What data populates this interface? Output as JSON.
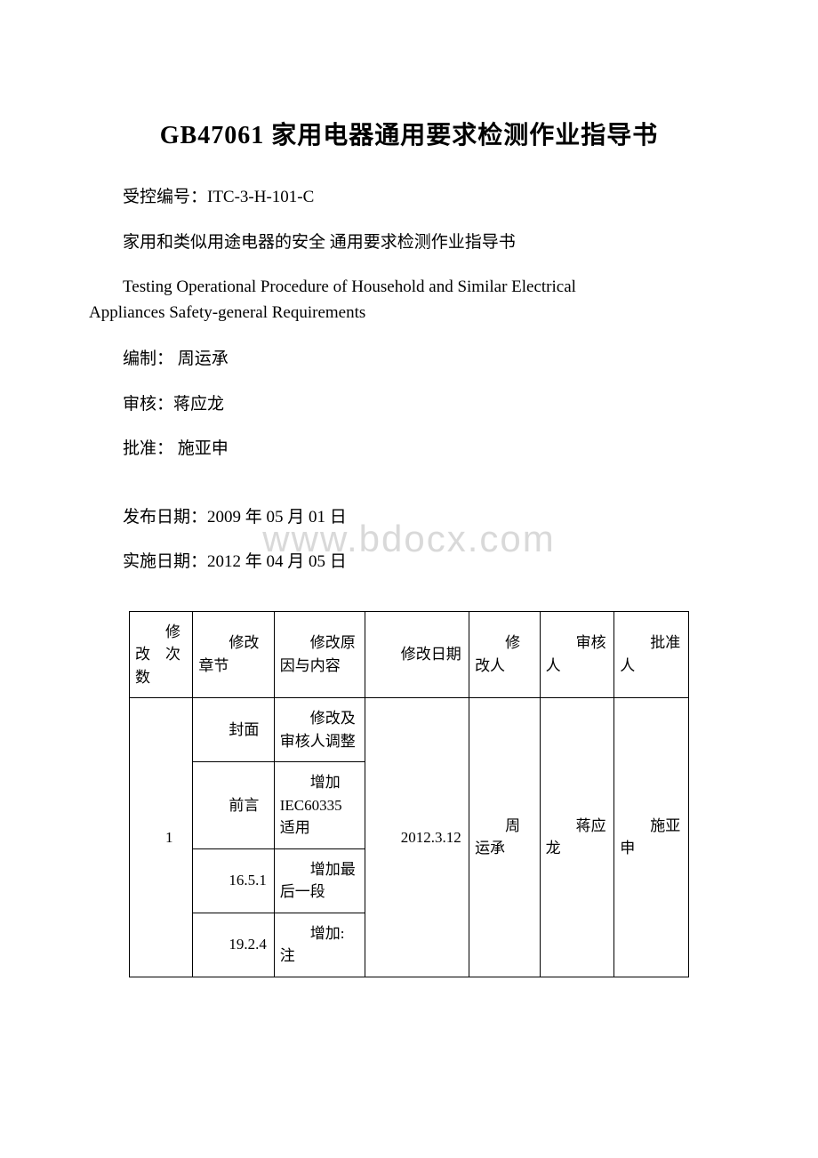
{
  "title": "GB47061 家用电器通用要求检测作业指导书",
  "control_number": "受控编号：ITC-3-H-101-C",
  "subtitle_cn": "家用和类似用途电器的安全 通用要求检测作业指导书",
  "subtitle_en_line1": "Testing Operational Procedure of Household and Similar Electrical",
  "subtitle_en_line2": "Appliances Safety-general Requirements",
  "author": "编制： 周运承",
  "reviewer": "审核：蒋应龙",
  "approver": "批准： 施亚申",
  "publish_date": "发布日期：2009 年 05 月 01 日",
  "effective_date": "实施日期：2012 年 04 月 05 日",
  "watermark": "www.bdocx.com",
  "table": {
    "headers": {
      "c1": "修改　次数",
      "c2": "修改章节",
      "c3": "修改原因与内容",
      "c4": "修改日期",
      "c5": "修改人",
      "c6": "审核人",
      "c7": "批准人"
    },
    "revision_number": "1",
    "sections": [
      {
        "chapter": "封面",
        "content": "修改及审核人调整"
      },
      {
        "chapter": "前言",
        "content": "增加IEC60335 适用"
      },
      {
        "chapter": "16.5.1",
        "content": "增加最后一段"
      },
      {
        "chapter": "19.2.4",
        "content": "增加:注"
      }
    ],
    "date": "2012.3.12",
    "modifier": "周运承",
    "reviewer": "蒋应龙",
    "approver": "施亚申"
  }
}
